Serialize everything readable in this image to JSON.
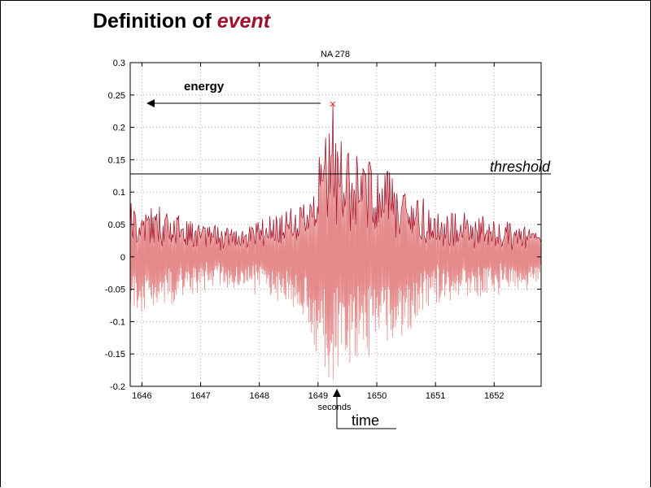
{
  "slide": {
    "title_prefix": "Definition of ",
    "title_accent": "event"
  },
  "colors": {
    "signal": "#a0102a",
    "signal_light": "#e58a8a",
    "peak_marker": "#e03030",
    "grid": "#b0b0b0",
    "axis": "#000000"
  },
  "chart_data": {
    "type": "line",
    "title": "NA 278",
    "xlabel": "seconds",
    "ylabel": "",
    "xlim": [
      1645.8,
      1652.8
    ],
    "ylim": [
      -0.2,
      0.3
    ],
    "x_ticks": [
      1646,
      1647,
      1648,
      1649,
      1650,
      1651,
      1652
    ],
    "x_tick_labels": [
      "1646",
      "1647",
      "1648",
      "1649",
      "1650",
      "1651",
      "1652"
    ],
    "y_ticks": [
      0.3,
      0.25,
      0.2,
      0.15,
      0.1,
      0.05,
      0,
      -0.05,
      -0.1,
      -0.15,
      -0.2
    ],
    "y_tick_labels": [
      "0.3",
      "0.25",
      "0.2",
      "0.15",
      "0.1",
      "0.05",
      "0",
      "-0.05",
      "-0.1",
      "-0.15",
      "-0.2"
    ],
    "grid": true,
    "threshold": 0.128,
    "peak": {
      "x": 1649.25,
      "y": 0.236
    },
    "envelope": [
      {
        "x": 1645.8,
        "amp": 0.09
      },
      {
        "x": 1646.5,
        "amp": 0.07
      },
      {
        "x": 1647.2,
        "amp": 0.045
      },
      {
        "x": 1648.0,
        "amp": 0.055
      },
      {
        "x": 1648.7,
        "amp": 0.08
      },
      {
        "x": 1649.0,
        "amp": 0.16
      },
      {
        "x": 1649.2,
        "amp": 0.2
      },
      {
        "x": 1649.5,
        "amp": 0.17
      },
      {
        "x": 1649.9,
        "amp": 0.15
      },
      {
        "x": 1650.3,
        "amp": 0.13
      },
      {
        "x": 1650.6,
        "amp": 0.11
      },
      {
        "x": 1651.0,
        "amp": 0.07
      },
      {
        "x": 1651.8,
        "amp": 0.06
      },
      {
        "x": 1652.8,
        "amp": 0.045
      }
    ],
    "annotations": {
      "energy": "energy",
      "threshold": "threshold",
      "time": "time"
    }
  }
}
